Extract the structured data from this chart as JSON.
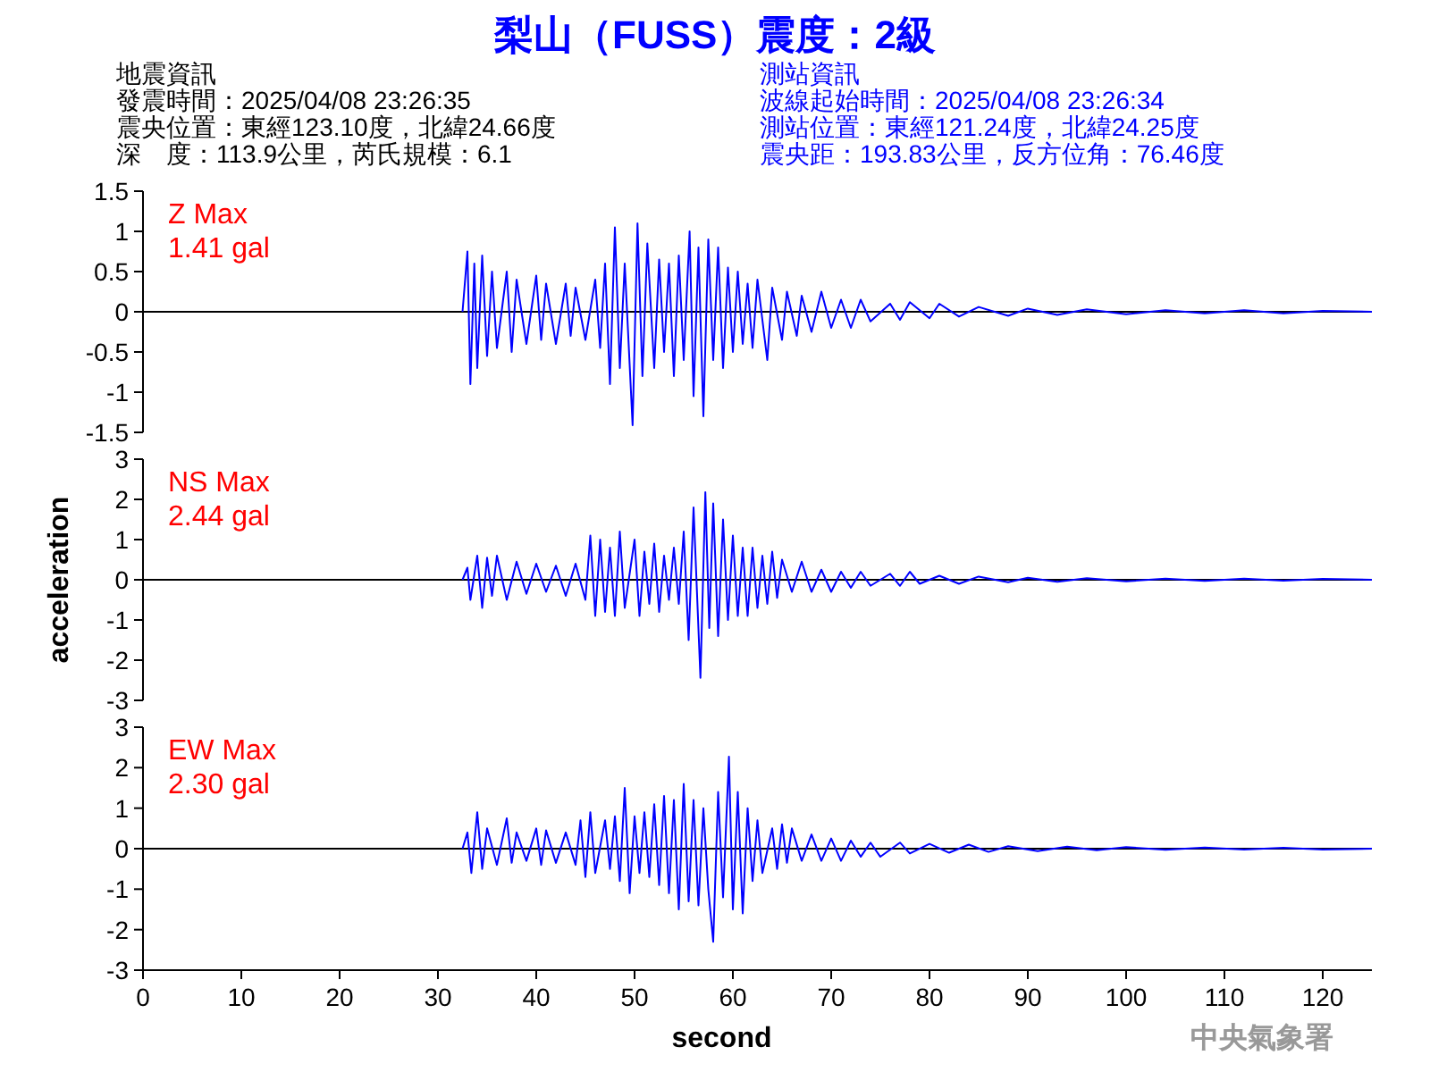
{
  "chart_data": [
    {
      "type": "line",
      "title": "梨山（FUSS）震度：2級",
      "annotations": [
        "地震資訊",
        "發震時間：2025/04/08 23:26:35",
        "震央位置：東經123.10度，北緯24.66度",
        "深　度：113.9公里，芮氏規模：6.1",
        "測站資訊",
        "波線起始時間：2025/04/08 23:26:34",
        "測站位置：東經121.24度，北緯24.25度",
        "震央距：193.83公里，反方位角：76.46度",
        "Z Max",
        "1.41 gal"
      ],
      "xlim": [
        0,
        125
      ],
      "ylim": [
        -1.5,
        1.5
      ],
      "yticks": [
        -1.5,
        -1,
        -0.5,
        0,
        0.5,
        1,
        1.5
      ],
      "tick_labels": "y",
      "grid": false,
      "ref_lines": [
        {
          "axis": "y",
          "value": 0,
          "color": "#000000"
        }
      ],
      "series": [
        {
          "color": "#0000ff",
          "x": [
            32.5,
            33,
            33.3,
            33.7,
            34,
            34.5,
            35,
            35.5,
            36,
            37,
            37.5,
            38,
            39,
            40,
            40.5,
            41,
            42,
            43,
            43.5,
            44,
            45,
            46,
            46.5,
            47,
            47.5,
            48,
            48.5,
            49,
            49.8,
            50.3,
            50.8,
            51.3,
            52,
            52.5,
            53,
            53.5,
            54,
            54.5,
            55,
            55.6,
            56,
            56.5,
            57,
            57.5,
            58,
            58.5,
            59,
            59.5,
            60,
            60.5,
            61,
            61.5,
            62,
            62.5,
            63.5,
            64,
            65,
            65.5,
            66.5,
            67,
            68,
            69,
            70,
            71,
            72,
            73,
            74,
            76,
            77,
            78,
            80,
            81,
            83,
            85,
            88,
            90,
            93,
            96,
            100,
            104,
            108,
            112,
            116,
            120,
            125
          ],
          "values": [
            0,
            0.75,
            -0.9,
            0.6,
            -0.7,
            0.7,
            -0.55,
            0.5,
            -0.45,
            0.5,
            -0.5,
            0.4,
            -0.4,
            0.45,
            -0.35,
            0.35,
            -0.4,
            0.35,
            -0.3,
            0.3,
            -0.35,
            0.4,
            -0.45,
            0.6,
            -0.9,
            1.05,
            -0.7,
            0.6,
            -1.41,
            1.1,
            -0.8,
            0.85,
            -0.7,
            0.65,
            -0.5,
            0.6,
            -0.8,
            0.7,
            -0.6,
            1.0,
            -1.05,
            0.8,
            -1.3,
            0.9,
            -0.6,
            0.8,
            -0.7,
            0.55,
            -0.5,
            0.5,
            -0.4,
            0.35,
            -0.45,
            0.4,
            -0.6,
            0.3,
            -0.35,
            0.25,
            -0.3,
            0.2,
            -0.25,
            0.25,
            -0.2,
            0.15,
            -0.2,
            0.15,
            -0.12,
            0.1,
            -0.1,
            0.12,
            -0.08,
            0.1,
            -0.06,
            0.06,
            -0.05,
            0.04,
            -0.04,
            0.03,
            -0.03,
            0.02,
            -0.02,
            0.02,
            -0.02,
            0.01,
            0
          ]
        }
      ]
    },
    {
      "type": "line",
      "ylabel": "acceleration",
      "annotations": [
        "NS Max",
        "2.44 gal"
      ],
      "xlim": [
        0,
        125
      ],
      "ylim": [
        -3,
        3
      ],
      "yticks": [
        -3,
        -2,
        -1,
        0,
        1,
        2,
        3
      ],
      "tick_labels": "y",
      "grid": false,
      "ref_lines": [
        {
          "axis": "y",
          "value": 0,
          "color": "#000000"
        }
      ],
      "series": [
        {
          "color": "#0000ff",
          "x": [
            32.5,
            33,
            33.3,
            34,
            34.5,
            35,
            35.5,
            36,
            37,
            38,
            39,
            40,
            41,
            42,
            43,
            44,
            45,
            45.5,
            46,
            46.5,
            47,
            47.5,
            48,
            48.5,
            49,
            50,
            50.5,
            51,
            51.5,
            52,
            52.5,
            53,
            53.5,
            54,
            54.5,
            55,
            55.5,
            56,
            56.7,
            57.2,
            57.6,
            58,
            58.5,
            59,
            59.5,
            60,
            60.5,
            61,
            61.5,
            62,
            62.5,
            63,
            63.5,
            64,
            64.5,
            65,
            66,
            67,
            68,
            69,
            70,
            71,
            72,
            73,
            74,
            76,
            77,
            78,
            79,
            81,
            83,
            85,
            88,
            90,
            93,
            96,
            100,
            104,
            108,
            112,
            116,
            120,
            125
          ],
          "values": [
            0,
            0.3,
            -0.5,
            0.6,
            -0.7,
            0.55,
            -0.4,
            0.6,
            -0.5,
            0.45,
            -0.35,
            0.4,
            -0.3,
            0.35,
            -0.4,
            0.4,
            -0.5,
            1.1,
            -0.9,
            1.0,
            -0.8,
            0.8,
            -0.9,
            1.2,
            -0.7,
            1.0,
            -0.9,
            0.7,
            -0.6,
            0.9,
            -0.8,
            0.6,
            -0.5,
            0.8,
            -0.6,
            1.2,
            -1.5,
            1.8,
            -2.44,
            2.18,
            -1.2,
            1.9,
            -1.4,
            1.5,
            -1.0,
            1.1,
            -0.9,
            0.8,
            -0.9,
            0.8,
            -0.7,
            0.6,
            -0.6,
            0.7,
            -0.45,
            0.5,
            -0.3,
            0.45,
            -0.3,
            0.25,
            -0.3,
            0.2,
            -0.2,
            0.2,
            -0.15,
            0.15,
            -0.15,
            0.2,
            -0.1,
            0.1,
            -0.1,
            0.08,
            -0.06,
            0.05,
            -0.05,
            0.04,
            -0.04,
            0.03,
            -0.03,
            0.03,
            -0.02,
            0.02,
            0
          ]
        }
      ]
    },
    {
      "type": "line",
      "xlabel": "second",
      "annotations": [
        "EW Max",
        "2.30 gal",
        "中央氣象署"
      ],
      "xlim": [
        0,
        125
      ],
      "xticks": [
        0,
        10,
        20,
        30,
        40,
        50,
        60,
        70,
        80,
        90,
        100,
        110,
        120
      ],
      "ylim": [
        -3,
        3
      ],
      "yticks": [
        -3,
        -2,
        -1,
        0,
        1,
        2,
        3
      ],
      "grid": false,
      "ref_lines": [
        {
          "axis": "y",
          "value": 0,
          "color": "#000000"
        }
      ],
      "series": [
        {
          "color": "#0000ff",
          "x": [
            32.5,
            33,
            33.4,
            34,
            34.5,
            35,
            36,
            37,
            37.5,
            38,
            39,
            40,
            40.5,
            41,
            42,
            43,
            44,
            44.5,
            45,
            45.5,
            46,
            47,
            47.5,
            48,
            48.5,
            49,
            49.5,
            50,
            50.5,
            51,
            51.5,
            52,
            52.5,
            53,
            53.5,
            54,
            54.5,
            55,
            55.5,
            56,
            56.5,
            57,
            57.5,
            58,
            58.5,
            59,
            59.6,
            60,
            60.5,
            61,
            61.5,
            62,
            62.5,
            63,
            64,
            64.5,
            65,
            65.5,
            66,
            67,
            68,
            69,
            70,
            71,
            72,
            73,
            74,
            75,
            77,
            78,
            80,
            82,
            84,
            86,
            88,
            91,
            94,
            97,
            100,
            104,
            108,
            112,
            116,
            120,
            125
          ],
          "values": [
            0,
            0.4,
            -0.6,
            0.9,
            -0.5,
            0.5,
            -0.4,
            0.75,
            -0.35,
            0.4,
            -0.3,
            0.5,
            -0.4,
            0.45,
            -0.35,
            0.4,
            -0.4,
            0.7,
            -0.7,
            0.9,
            -0.6,
            0.7,
            -0.5,
            0.8,
            -0.8,
            1.5,
            -1.1,
            0.8,
            -0.6,
            0.9,
            -0.7,
            1.1,
            -0.9,
            1.3,
            -1.1,
            1.2,
            -1.5,
            1.6,
            -1.3,
            1.2,
            -1.4,
            1.0,
            -1.0,
            -2.3,
            1.4,
            -1.2,
            2.27,
            -1.5,
            1.4,
            -1.6,
            1.0,
            -0.8,
            0.7,
            -0.6,
            0.5,
            -0.5,
            0.6,
            -0.35,
            0.5,
            -0.3,
            0.35,
            -0.3,
            0.25,
            -0.3,
            0.2,
            -0.2,
            0.15,
            -0.2,
            0.15,
            -0.12,
            0.12,
            -0.1,
            0.1,
            -0.08,
            0.06,
            -0.06,
            0.05,
            -0.04,
            0.04,
            -0.03,
            0.03,
            -0.02,
            0.02,
            -0.02,
            0
          ]
        }
      ]
    }
  ]
}
